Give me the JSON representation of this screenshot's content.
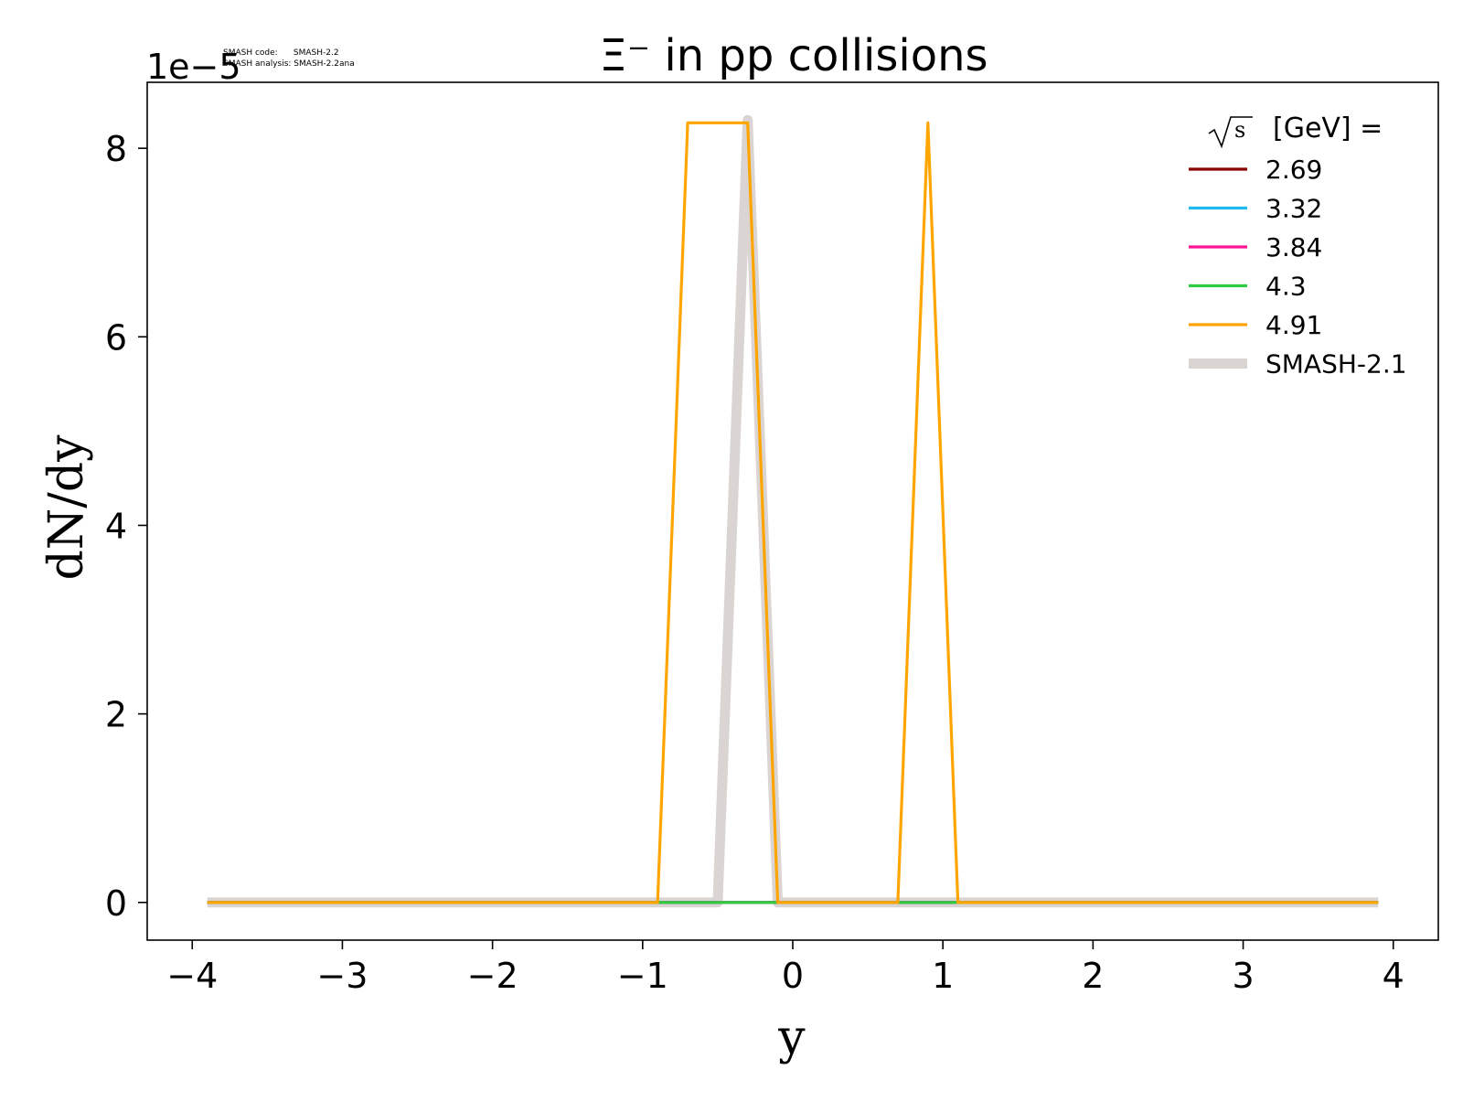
{
  "chart_data": {
    "type": "line",
    "title": "Ξ⁻ in pp collisions",
    "xlabel": "y",
    "ylabel": "dN/dy",
    "y_multiplier": "1e−5",
    "xlim": [
      -4.3,
      4.3
    ],
    "ylim": [
      -0.4,
      8.7
    ],
    "xticks": [
      -4,
      -3,
      -2,
      -1,
      0,
      1,
      2,
      3,
      4
    ],
    "yticks": [
      0,
      2,
      4,
      6,
      8
    ],
    "xtick_labels": [
      "−4",
      "−3",
      "−2",
      "−1",
      "0",
      "1",
      "2",
      "3",
      "4"
    ],
    "ytick_labels": [
      "0",
      "2",
      "4",
      "6",
      "8"
    ],
    "grid": false,
    "legend": {
      "placement": "top-right",
      "title_prefix": "√s",
      "title_suffix": "[GeV] ="
    },
    "series": [
      {
        "name": "SMASH-2.1",
        "color": "#dad5d2",
        "style": "thick",
        "x": [
          -3.9,
          -0.5,
          -0.3,
          -0.1,
          3.9
        ],
        "y": [
          0,
          0,
          8.3,
          0,
          0
        ]
      },
      {
        "name": "2.69",
        "color": "#8b0000",
        "style": "thin",
        "x": [
          -3.9,
          3.9
        ],
        "y": [
          0,
          0
        ]
      },
      {
        "name": "3.32",
        "color": "#1fb8f0",
        "style": "thin",
        "x": [
          -3.9,
          3.9
        ],
        "y": [
          0,
          0
        ]
      },
      {
        "name": "3.84",
        "color": "#ff1493",
        "style": "thin",
        "x": [
          -3.9,
          3.9
        ],
        "y": [
          0,
          0
        ]
      },
      {
        "name": "4.3",
        "color": "#2ecc40",
        "style": "thin",
        "x": [
          -3.9,
          3.9
        ],
        "y": [
          0,
          0
        ]
      },
      {
        "name": "4.91",
        "color": "#ffa500",
        "style": "thin",
        "x": [
          -3.9,
          -0.9,
          -0.7,
          -0.3,
          -0.1,
          0.7,
          0.9,
          1.1,
          3.9
        ],
        "y": [
          0,
          0,
          8.27,
          8.27,
          0,
          0,
          8.27,
          0,
          0
        ]
      }
    ],
    "legend_order": [
      "2.69",
      "3.32",
      "3.84",
      "4.3",
      "4.91",
      "SMASH-2.1"
    ]
  },
  "annotation": {
    "line1": "SMASH code:      SMASH-2.2",
    "line2": "SMASH analysis: SMASH-2.2ana"
  },
  "colors": {
    "axes": "#000000",
    "background": "#ffffff"
  }
}
